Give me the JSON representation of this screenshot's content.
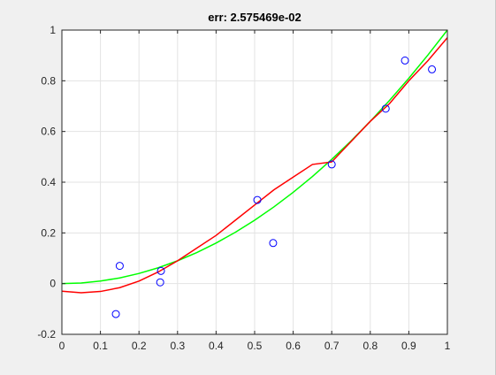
{
  "chart_data": {
    "type": "scatter",
    "title": "err: 2.575469e-02",
    "xlabel": "",
    "ylabel": "",
    "xlim": [
      0,
      1
    ],
    "ylim": [
      -0.2,
      1
    ],
    "xticks": [
      "0",
      "0.1",
      "0.2",
      "0.3",
      "0.4",
      "0.5",
      "0.6",
      "0.7",
      "0.8",
      "0.9",
      "1"
    ],
    "yticks": [
      "-0.2",
      "0",
      "0.2",
      "0.4",
      "0.6",
      "0.8",
      "1"
    ],
    "grid": true,
    "series": [
      {
        "kind": "markers",
        "marker": "circle",
        "color": "#0000ff",
        "x": [
          0.14,
          0.15,
          0.255,
          0.257,
          0.507,
          0.548,
          0.7,
          0.84,
          0.89,
          0.96
        ],
        "y": [
          -0.12,
          0.07,
          0.005,
          0.05,
          0.33,
          0.16,
          0.47,
          0.69,
          0.88,
          0.845
        ]
      },
      {
        "kind": "line",
        "color": "#00ff00",
        "x": [
          0,
          0.05,
          0.1,
          0.15,
          0.2,
          0.25,
          0.3,
          0.35,
          0.4,
          0.45,
          0.5,
          0.55,
          0.6,
          0.65,
          0.7,
          0.75,
          0.8,
          0.85,
          0.9,
          0.95,
          1
        ],
        "y": [
          0,
          0.0025,
          0.01,
          0.0225,
          0.04,
          0.0625,
          0.09,
          0.1225,
          0.16,
          0.2025,
          0.25,
          0.3025,
          0.36,
          0.4225,
          0.49,
          0.5625,
          0.64,
          0.7225,
          0.81,
          0.9025,
          1
        ]
      },
      {
        "kind": "line",
        "color": "#ff0000",
        "x": [
          0,
          0.05,
          0.1,
          0.15,
          0.2,
          0.25,
          0.3,
          0.35,
          0.4,
          0.45,
          0.5,
          0.55,
          0.6,
          0.65,
          0.7,
          0.75,
          0.8,
          0.85,
          0.9,
          0.95,
          1
        ],
        "y": [
          -0.03,
          -0.036,
          -0.031,
          -0.016,
          0.01,
          0.046,
          0.09,
          0.14,
          0.19,
          0.25,
          0.31,
          0.37,
          0.42,
          0.47,
          0.48,
          0.56,
          0.64,
          0.71,
          0.8,
          0.88,
          0.97
        ]
      }
    ]
  }
}
